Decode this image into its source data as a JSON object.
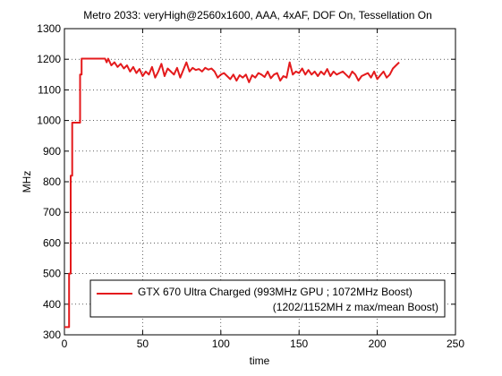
{
  "chart_data": {
    "type": "line",
    "title": "Metro 2033: veryHigh@2560x1600, AAA, 4xAF, DOF On, Tessellation On",
    "xlabel": "time",
    "ylabel": "MHz",
    "xlim": [
      0,
      250
    ],
    "ylim": [
      300,
      1300
    ],
    "xticks": [
      "0",
      "50",
      "100",
      "150",
      "200",
      "250"
    ],
    "yticks": [
      "300",
      "400",
      "500",
      "600",
      "700",
      "800",
      "900",
      "1000",
      "1100",
      "1200",
      "1300"
    ],
    "grid": true,
    "legend_position": "bottom-right",
    "series": [
      {
        "name": "GTX 670 Ultra Charged (993MHz GPU ; 1072MHz Boost)",
        "name_line2": "(1202/1152MH z max/mean Boost)",
        "color": "#e41a1c",
        "x": [
          0,
          1,
          2,
          3,
          3,
          4,
          4,
          5,
          5,
          6,
          6,
          7,
          8,
          9,
          10,
          10,
          11,
          11,
          12,
          14,
          16,
          18,
          20,
          22,
          24,
          26,
          27,
          28,
          30,
          32,
          34,
          36,
          38,
          40,
          42,
          44,
          46,
          48,
          50,
          52,
          54,
          56,
          58,
          60,
          62,
          64,
          66,
          68,
          70,
          72,
          74,
          76,
          78,
          80,
          82,
          84,
          86,
          88,
          90,
          92,
          94,
          96,
          98,
          100,
          102,
          104,
          106,
          108,
          110,
          112,
          114,
          116,
          118,
          120,
          122,
          124,
          126,
          128,
          130,
          132,
          134,
          136,
          138,
          140,
          142,
          144,
          146,
          148,
          150,
          152,
          154,
          156,
          158,
          160,
          162,
          164,
          166,
          168,
          170,
          172,
          174,
          176,
          178,
          180,
          182,
          184,
          186,
          188,
          190,
          192,
          194,
          196,
          198,
          200,
          202,
          204,
          206,
          208,
          210,
          212,
          214
        ],
        "y": [
          325,
          325,
          325,
          325,
          500,
          500,
          820,
          820,
          993,
          993,
          993,
          993,
          993,
          993,
          993,
          1150,
          1150,
          1202,
          1202,
          1202,
          1202,
          1202,
          1202,
          1202,
          1202,
          1202,
          1190,
          1202,
          1180,
          1190,
          1175,
          1185,
          1170,
          1180,
          1160,
          1175,
          1155,
          1168,
          1145,
          1160,
          1150,
          1175,
          1140,
          1160,
          1185,
          1145,
          1170,
          1160,
          1150,
          1172,
          1140,
          1165,
          1190,
          1160,
          1172,
          1165,
          1168,
          1160,
          1172,
          1166,
          1170,
          1160,
          1140,
          1150,
          1155,
          1145,
          1135,
          1150,
          1130,
          1148,
          1140,
          1150,
          1125,
          1148,
          1140,
          1155,
          1150,
          1142,
          1160,
          1138,
          1150,
          1155,
          1130,
          1145,
          1140,
          1190,
          1150,
          1160,
          1155,
          1170,
          1150,
          1165,
          1150,
          1160,
          1145,
          1160,
          1150,
          1168,
          1145,
          1160,
          1150,
          1155,
          1160,
          1150,
          1140,
          1160,
          1150,
          1130,
          1145,
          1150,
          1155,
          1140,
          1160,
          1135,
          1148,
          1160,
          1140,
          1150,
          1170,
          1180,
          1190
        ]
      }
    ]
  }
}
